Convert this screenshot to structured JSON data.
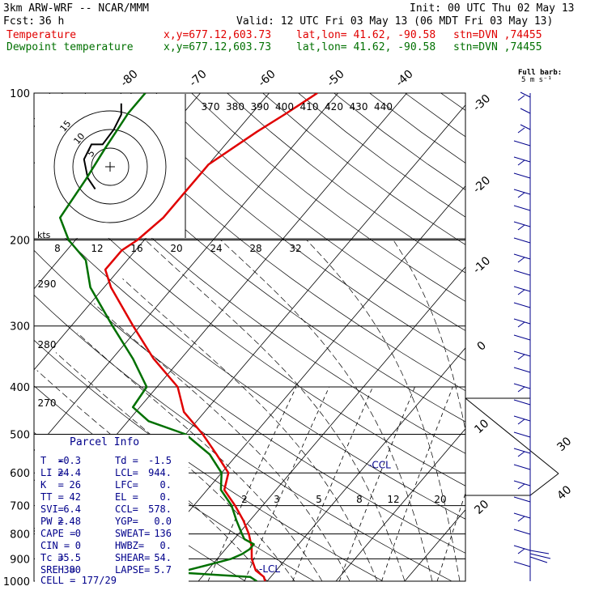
{
  "header": {
    "model": "3km ARW-WRF -- NCAR/MMM",
    "init": "Init: 00 UTC Thu 02 May 13",
    "fcst_label": "Fcst:",
    "fcst_value": "36 h",
    "valid": "Valid: 12 UTC Fri 03 May 13 (06 MDT Fri 03 May 13)",
    "temp_label": "Temperature",
    "dew_label": "Dewpoint temperature",
    "xy": "x,y=677.12,603.73",
    "latlon": "lat,lon= 41.62, -90.58",
    "stn": "stn=DVN ,74455"
  },
  "barb_legend": {
    "line1": "Full barb:",
    "line2": "5 m s⁻¹"
  },
  "chart_data": {
    "type": "line",
    "title": "",
    "ylabel": "",
    "xlabel": "",
    "pressure_ticks": [
      100,
      200,
      300,
      400,
      500,
      600,
      700,
      800,
      900,
      1000
    ],
    "pressure_labels": [
      "100",
      "200",
      "300",
      "400",
      "500",
      "600",
      "700",
      "800",
      "900",
      "1000"
    ],
    "isotherm_labels": [
      {
        "t": -80,
        "label": "-80"
      },
      {
        "t": -70,
        "label": "-70"
      },
      {
        "t": -60,
        "label": "-60"
      },
      {
        "t": -50,
        "label": "-50"
      },
      {
        "t": -40,
        "label": "-40"
      },
      {
        "t": -30,
        "label": "-30"
      },
      {
        "t": -20,
        "label": "-20"
      },
      {
        "t": -10,
        "label": "-10"
      },
      {
        "t": 0,
        "label": "0"
      },
      {
        "t": 10,
        "label": "10"
      },
      {
        "t": 20,
        "label": "20"
      },
      {
        "t": 30,
        "label": "30"
      },
      {
        "t": 40,
        "label": "40"
      }
    ],
    "theta_top_labels": [
      "370",
      "380",
      "390",
      "400",
      "410",
      "420",
      "430",
      "440"
    ],
    "theta_left_labels": [
      "290",
      "280",
      "270"
    ],
    "mixing_ratio_labels": [
      "2",
      "3",
      "5",
      "8",
      "12",
      "20"
    ],
    "series": [
      {
        "name": "Temperature",
        "color": "#e00000",
        "points": [
          [
            1000,
            -0.3
          ],
          [
            980,
            -1
          ],
          [
            950,
            -3
          ],
          [
            900,
            -5
          ],
          [
            850,
            -6.5
          ],
          [
            800,
            -8.5
          ],
          [
            750,
            -11
          ],
          [
            700,
            -14
          ],
          [
            650,
            -17.5
          ],
          [
            600,
            -19
          ],
          [
            550,
            -23
          ],
          [
            500,
            -27.5
          ],
          [
            450,
            -33
          ],
          [
            400,
            -37
          ],
          [
            350,
            -44
          ],
          [
            300,
            -51
          ],
          [
            250,
            -59
          ],
          [
            230,
            -62
          ],
          [
            210,
            -62
          ],
          [
            200,
            -61
          ],
          [
            180,
            -60
          ],
          [
            160,
            -60
          ],
          [
            140,
            -60
          ],
          [
            120,
            -57
          ],
          [
            110,
            -55
          ],
          [
            100,
            -53
          ]
        ]
      },
      {
        "name": "Dewpoint temperature",
        "color": "#007000",
        "points": [
          [
            1000,
            -1.5
          ],
          [
            980,
            -3
          ],
          [
            960,
            -14
          ],
          [
            940,
            -12
          ],
          [
            920,
            -10
          ],
          [
            900,
            -8
          ],
          [
            880,
            -7
          ],
          [
            860,
            -6.5
          ],
          [
            840,
            -6.5
          ],
          [
            820,
            -8.5
          ],
          [
            800,
            -9.5
          ],
          [
            750,
            -12
          ],
          [
            700,
            -14.5
          ],
          [
            650,
            -18
          ],
          [
            600,
            -20
          ],
          [
            550,
            -24
          ],
          [
            500,
            -30
          ],
          [
            470,
            -37
          ],
          [
            440,
            -41
          ],
          [
            400,
            -41.5
          ],
          [
            350,
            -47
          ],
          [
            300,
            -54
          ],
          [
            250,
            -62
          ],
          [
            220,
            -66
          ],
          [
            200,
            -71
          ],
          [
            180,
            -75
          ],
          [
            150,
            -76
          ],
          [
            130,
            -77
          ],
          [
            110,
            -78
          ],
          [
            100,
            -78
          ]
        ]
      }
    ],
    "levels": [
      {
        "p": 945,
        "label": "-LCL"
      },
      {
        "p": 578,
        "label": "-CCL"
      }
    ],
    "hodograph": {
      "ring_labels": [
        "5",
        "10",
        "15"
      ],
      "label": "kts",
      "points": [
        [
          -4,
          -6
        ],
        [
          -6,
          -3
        ],
        [
          -7,
          2
        ],
        [
          -5,
          6
        ],
        [
          -2,
          6
        ],
        [
          1,
          10
        ],
        [
          3,
          14
        ],
        [
          3,
          17
        ]
      ]
    }
  },
  "parcel_info": {
    "title": "Parcel Info",
    "rows": [
      [
        "T  =",
        "-0.3",
        "Td =",
        "-1.5"
      ],
      [
        "LI =",
        "24.4",
        "LCL=",
        "944."
      ],
      [
        "K  =",
        "26",
        "LFC=",
        "0."
      ],
      [
        "TT =",
        "42",
        "EL =",
        "0."
      ],
      [
        "SVI=",
        "6.4",
        "CCL=",
        "578."
      ],
      [
        "PW =",
        "2.48",
        "YGP=",
        "0.0"
      ],
      [
        "CAPE =",
        "0",
        "SWEAT=",
        "136"
      ],
      [
        "CIN =",
        "0",
        "HWBZ=",
        "0."
      ],
      [
        "Tc =",
        "35.5",
        "SHEAR=",
        "54."
      ],
      [
        "SREH =",
        "380",
        "LAPSE=",
        "5.7"
      ]
    ],
    "cell_label": "CELL = 177/29"
  }
}
